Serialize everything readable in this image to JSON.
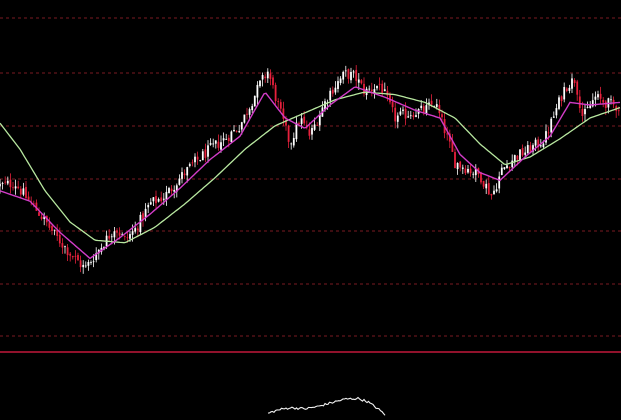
{
  "chart_data": {
    "type": "candlestick",
    "title": "",
    "xlabel": "",
    "ylabel": "",
    "grid": true,
    "grid_style": "dashed",
    "legend": "none",
    "x_range": [
      0,
      620
    ],
    "ylim": [
      0,
      100
    ],
    "colors": {
      "background": "#000000",
      "grid": "#7a1a22",
      "panel_divider": "#c2183a",
      "up_candle": "#ffffff",
      "down_candle": "#e8203c",
      "ma_short": "#d23cc8",
      "ma_long": "#b8e8a0",
      "indicator": "#f2f2f2"
    },
    "price_path": [
      {
        "x": 0,
        "y": 44
      },
      {
        "x": 15,
        "y": 45
      },
      {
        "x": 25,
        "y": 40
      },
      {
        "x": 40,
        "y": 33
      },
      {
        "x": 55,
        "y": 25
      },
      {
        "x": 70,
        "y": 18
      },
      {
        "x": 85,
        "y": 12
      },
      {
        "x": 100,
        "y": 20
      },
      {
        "x": 115,
        "y": 28
      },
      {
        "x": 125,
        "y": 23
      },
      {
        "x": 135,
        "y": 27
      },
      {
        "x": 150,
        "y": 37
      },
      {
        "x": 165,
        "y": 40
      },
      {
        "x": 180,
        "y": 47
      },
      {
        "x": 195,
        "y": 53
      },
      {
        "x": 210,
        "y": 58
      },
      {
        "x": 225,
        "y": 62
      },
      {
        "x": 240,
        "y": 67
      },
      {
        "x": 250,
        "y": 75
      },
      {
        "x": 260,
        "y": 83
      },
      {
        "x": 268,
        "y": 88
      },
      {
        "x": 278,
        "y": 75
      },
      {
        "x": 290,
        "y": 60
      },
      {
        "x": 300,
        "y": 70
      },
      {
        "x": 310,
        "y": 63
      },
      {
        "x": 320,
        "y": 72
      },
      {
        "x": 330,
        "y": 80
      },
      {
        "x": 345,
        "y": 87
      },
      {
        "x": 355,
        "y": 86
      },
      {
        "x": 365,
        "y": 80
      },
      {
        "x": 380,
        "y": 83
      },
      {
        "x": 395,
        "y": 70
      },
      {
        "x": 410,
        "y": 72
      },
      {
        "x": 425,
        "y": 73
      },
      {
        "x": 435,
        "y": 76
      },
      {
        "x": 445,
        "y": 65
      },
      {
        "x": 455,
        "y": 53
      },
      {
        "x": 470,
        "y": 50
      },
      {
        "x": 480,
        "y": 48
      },
      {
        "x": 492,
        "y": 40
      },
      {
        "x": 502,
        "y": 50
      },
      {
        "x": 515,
        "y": 55
      },
      {
        "x": 530,
        "y": 58
      },
      {
        "x": 545,
        "y": 62
      },
      {
        "x": 555,
        "y": 72
      },
      {
        "x": 565,
        "y": 82
      },
      {
        "x": 575,
        "y": 85
      },
      {
        "x": 583,
        "y": 70
      },
      {
        "x": 595,
        "y": 78
      },
      {
        "x": 605,
        "y": 76
      },
      {
        "x": 620,
        "y": 74
      }
    ],
    "ma_short": [
      {
        "x": 0,
        "y": 42
      },
      {
        "x": 30,
        "y": 38
      },
      {
        "x": 60,
        "y": 26
      },
      {
        "x": 90,
        "y": 16
      },
      {
        "x": 120,
        "y": 24
      },
      {
        "x": 150,
        "y": 33
      },
      {
        "x": 180,
        "y": 43
      },
      {
        "x": 210,
        "y": 54
      },
      {
        "x": 240,
        "y": 63
      },
      {
        "x": 265,
        "y": 80
      },
      {
        "x": 285,
        "y": 70
      },
      {
        "x": 305,
        "y": 66
      },
      {
        "x": 330,
        "y": 75
      },
      {
        "x": 355,
        "y": 82
      },
      {
        "x": 385,
        "y": 78
      },
      {
        "x": 415,
        "y": 73
      },
      {
        "x": 440,
        "y": 70
      },
      {
        "x": 460,
        "y": 56
      },
      {
        "x": 480,
        "y": 49
      },
      {
        "x": 500,
        "y": 46
      },
      {
        "x": 525,
        "y": 55
      },
      {
        "x": 550,
        "y": 63
      },
      {
        "x": 570,
        "y": 76
      },
      {
        "x": 590,
        "y": 75
      },
      {
        "x": 620,
        "y": 76
      }
    ],
    "ma_long": [
      {
        "x": 0,
        "y": 68
      },
      {
        "x": 20,
        "y": 58
      },
      {
        "x": 45,
        "y": 42
      },
      {
        "x": 70,
        "y": 30
      },
      {
        "x": 95,
        "y": 23
      },
      {
        "x": 125,
        "y": 22
      },
      {
        "x": 155,
        "y": 28
      },
      {
        "x": 185,
        "y": 37
      },
      {
        "x": 215,
        "y": 47
      },
      {
        "x": 245,
        "y": 58
      },
      {
        "x": 275,
        "y": 67
      },
      {
        "x": 305,
        "y": 72
      },
      {
        "x": 335,
        "y": 77
      },
      {
        "x": 365,
        "y": 80
      },
      {
        "x": 395,
        "y": 79
      },
      {
        "x": 425,
        "y": 76
      },
      {
        "x": 455,
        "y": 70
      },
      {
        "x": 480,
        "y": 60
      },
      {
        "x": 505,
        "y": 52
      },
      {
        "x": 530,
        "y": 55
      },
      {
        "x": 560,
        "y": 62
      },
      {
        "x": 590,
        "y": 70
      },
      {
        "x": 620,
        "y": 74
      }
    ],
    "indicator_series": [
      {
        "x": 268,
        "y": 20
      },
      {
        "x": 278,
        "y": 35
      },
      {
        "x": 290,
        "y": 45
      },
      {
        "x": 305,
        "y": 40
      },
      {
        "x": 318,
        "y": 50
      },
      {
        "x": 330,
        "y": 65
      },
      {
        "x": 345,
        "y": 82
      },
      {
        "x": 358,
        "y": 85
      },
      {
        "x": 368,
        "y": 70
      },
      {
        "x": 378,
        "y": 40
      },
      {
        "x": 385,
        "y": 15
      }
    ]
  }
}
